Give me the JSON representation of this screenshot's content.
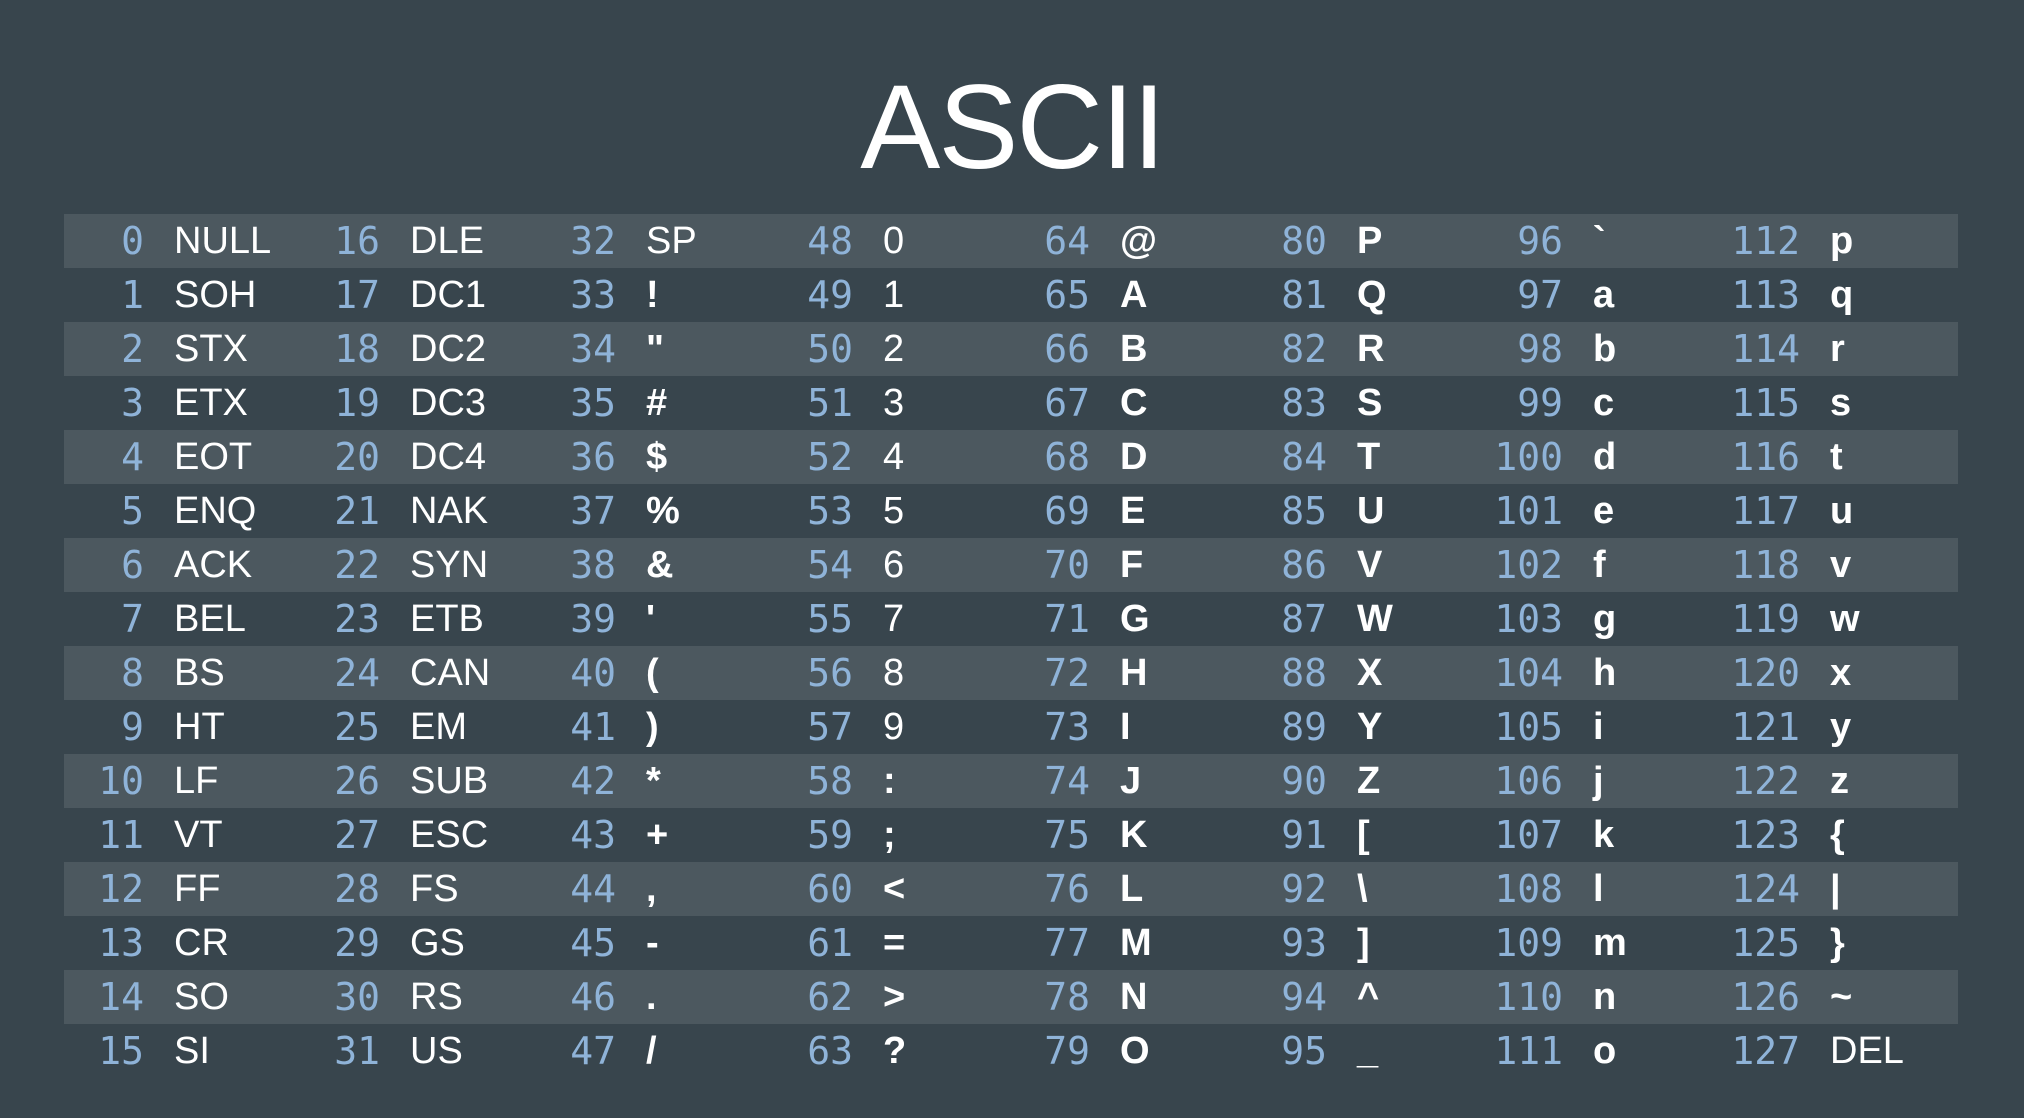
{
  "title": "ASCII",
  "columns": [
    [
      "NULL",
      "SOH",
      "STX",
      "ETX",
      "EOT",
      "ENQ",
      "ACK",
      "BEL",
      "BS",
      "HT",
      "LF",
      "VT",
      "FF",
      "CR",
      "SO",
      "SI"
    ],
    [
      "DLE",
      "DC1",
      "DC2",
      "DC3",
      "DC4",
      "NAK",
      "SYN",
      "ETB",
      "CAN",
      "EM",
      "SUB",
      "ESC",
      "FS",
      "GS",
      "RS",
      "US"
    ],
    [
      "SP",
      "!",
      "\"",
      "#",
      "$",
      "%",
      "&",
      "'",
      "(",
      ")",
      "*",
      "+",
      ",",
      "-",
      ".",
      "/"
    ],
    [
      "0",
      "1",
      "2",
      "3",
      "4",
      "5",
      "6",
      "7",
      "8",
      "9",
      ":",
      ";",
      "<",
      "=",
      ">",
      "?"
    ],
    [
      "@",
      "A",
      "B",
      "C",
      "D",
      "E",
      "F",
      "G",
      "H",
      "I",
      "J",
      "K",
      "L",
      "M",
      "N",
      "O"
    ],
    [
      "P",
      "Q",
      "R",
      "S",
      "T",
      "U",
      "V",
      "W",
      "X",
      "Y",
      "Z",
      "[",
      "\\",
      "]",
      "^",
      "_"
    ],
    [
      "`",
      "a",
      "b",
      "c",
      "d",
      "e",
      "f",
      "g",
      "h",
      "i",
      "j",
      "k",
      "l",
      "m",
      "n",
      "o"
    ],
    [
      "p",
      "q",
      "r",
      "s",
      "t",
      "u",
      "v",
      "w",
      "x",
      "y",
      "z",
      "{",
      "|",
      "}",
      "~",
      "DEL"
    ]
  ],
  "colors": {
    "background": "#38454d",
    "row_shade": "#4c585f",
    "code": "#8fb3d8",
    "char": "#ffffff"
  }
}
